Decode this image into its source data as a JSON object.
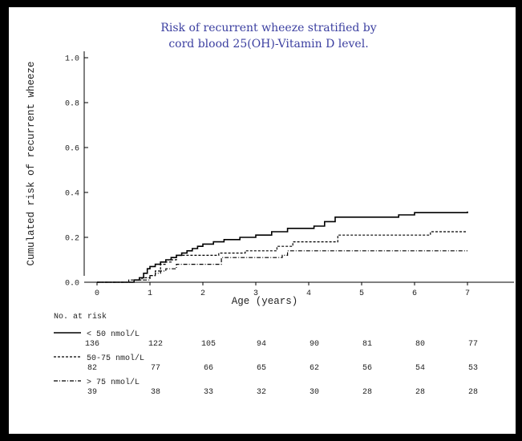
{
  "chart_data": {
    "type": "line",
    "step": true,
    "title_lines": [
      "Risk of recurrent wheeze stratified by",
      "cord blood 25(OH)-Vitamin D level."
    ],
    "xlabel": "Age (years)",
    "ylabel": "Cumulated risk of recurrent wheeze",
    "xlim": [
      -0.3,
      8
    ],
    "ylim": [
      0,
      1.0
    ],
    "xticks": [
      0,
      1,
      2,
      3,
      4,
      5,
      6,
      7
    ],
    "yticks": [
      0.0,
      0.2,
      0.4,
      0.6,
      0.8,
      1.0
    ],
    "ytick_labels": [
      "0.0",
      "0.2",
      "0.4",
      "0.6",
      "0.8",
      "1.0"
    ],
    "series": [
      {
        "name": "< 50 nmol/L",
        "line_style": "solid",
        "x": [
          0,
          0.7,
          0.8,
          0.88,
          0.95,
          1.0,
          1.1,
          1.2,
          1.3,
          1.4,
          1.5,
          1.6,
          1.7,
          1.8,
          1.9,
          2.0,
          2.2,
          2.4,
          2.7,
          3.0,
          3.3,
          3.6,
          4.1,
          4.3,
          4.5,
          5.7,
          6.0,
          7.0
        ],
        "y": [
          0,
          0.01,
          0.02,
          0.04,
          0.06,
          0.07,
          0.08,
          0.09,
          0.1,
          0.11,
          0.12,
          0.13,
          0.14,
          0.15,
          0.16,
          0.17,
          0.18,
          0.19,
          0.2,
          0.21,
          0.225,
          0.24,
          0.25,
          0.27,
          0.29,
          0.3,
          0.31,
          0.315
        ]
      },
      {
        "name": "50-75 nmol/L",
        "line_style": "dashed",
        "x": [
          0,
          0.6,
          0.85,
          1.0,
          1.1,
          1.2,
          1.3,
          1.4,
          1.5,
          2.3,
          2.8,
          3.4,
          3.7,
          4.55,
          6.3,
          7.0
        ],
        "y": [
          0,
          0.01,
          0.02,
          0.03,
          0.05,
          0.08,
          0.09,
          0.1,
          0.12,
          0.13,
          0.14,
          0.16,
          0.18,
          0.21,
          0.225,
          0.225
        ]
      },
      {
        "name": "> 75 nmol/L",
        "line_style": "dashdot",
        "x": [
          0,
          0.7,
          1.0,
          1.1,
          1.2,
          1.3,
          1.5,
          2.35,
          3.5,
          3.6,
          7.0
        ],
        "y": [
          0,
          0.01,
          0.03,
          0.04,
          0.05,
          0.06,
          0.08,
          0.11,
          0.12,
          0.14,
          0.14
        ]
      }
    ],
    "risk_table": {
      "header": "No. at risk",
      "rows": [
        {
          "label": "< 50 nmol/L",
          "values": [
            136,
            122,
            105,
            94,
            90,
            81,
            80,
            77
          ]
        },
        {
          "label": "50-75 nmol/L",
          "values": [
            82,
            77,
            66,
            65,
            62,
            56,
            54,
            53
          ]
        },
        {
          "label": "> 75 nmol/L",
          "values": [
            39,
            38,
            33,
            32,
            30,
            28,
            28,
            28
          ]
        }
      ]
    },
    "colors": {
      "title": "#3b3fa0",
      "lines": "#000000",
      "text": "#222222",
      "frame": "#000000"
    }
  }
}
